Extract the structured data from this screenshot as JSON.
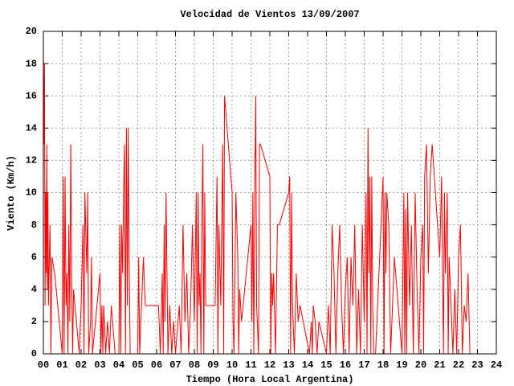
{
  "chart_data": {
    "type": "line",
    "title": "Velocidad de Vientos 13/09/2007",
    "x_label": "Tiempo (Hora Local Argentina)",
    "y_label": "Viento (Km/h)",
    "grid": true,
    "xlim": [
      0,
      24
    ],
    "ylim": [
      0,
      20
    ],
    "xticks": [
      {
        "value": 0,
        "label": "00"
      },
      {
        "value": 1,
        "label": "01"
      },
      {
        "value": 2,
        "label": "02"
      },
      {
        "value": 3,
        "label": "03"
      },
      {
        "value": 4,
        "label": "04"
      },
      {
        "value": 5,
        "label": "05"
      },
      {
        "value": 6,
        "label": "06"
      },
      {
        "value": 7,
        "label": "07"
      },
      {
        "value": 8,
        "label": "08"
      },
      {
        "value": 9,
        "label": "09"
      },
      10,
      11,
      12,
      13,
      14,
      15,
      16,
      17,
      18,
      19,
      20,
      21,
      22,
      23,
      24
    ],
    "yticks": [
      0,
      2,
      4,
      6,
      8,
      10,
      12,
      14,
      16,
      18,
      20
    ],
    "x": [
      0.0,
      0.03,
      0.06,
      0.09,
      0.12,
      0.15,
      0.18,
      0.21,
      0.24,
      0.27,
      0.3,
      0.35,
      0.4,
      0.45,
      0.6,
      1.0,
      1.05,
      1.1,
      1.15,
      1.2,
      1.25,
      1.3,
      1.35,
      1.4,
      1.45,
      1.5,
      1.55,
      1.6,
      1.9,
      2.0,
      2.1,
      2.15,
      2.2,
      2.3,
      2.35,
      2.4,
      2.5,
      2.55,
      2.6,
      3.0,
      3.05,
      3.1,
      3.15,
      3.2,
      3.3,
      3.4,
      3.5,
      3.6,
      3.8,
      4.0,
      4.05,
      4.1,
      4.15,
      4.2,
      4.25,
      4.3,
      4.35,
      4.4,
      4.45,
      4.5,
      4.55,
      4.6,
      5.0,
      5.05,
      5.1,
      5.2,
      5.3,
      5.4,
      5.5,
      6.0,
      6.1,
      6.2,
      6.3,
      6.35,
      6.4,
      6.45,
      6.5,
      6.55,
      6.6,
      6.7,
      6.8,
      6.9,
      7.0,
      7.2,
      7.3,
      7.4,
      7.5,
      7.6,
      7.7,
      7.8,
      7.9,
      8.0,
      8.1,
      8.15,
      8.2,
      8.25,
      8.3,
      8.35,
      8.4,
      8.45,
      8.5,
      8.55,
      8.6,
      9.1,
      9.2,
      9.25,
      9.3,
      9.4,
      9.5,
      9.55,
      9.6,
      10.0,
      10.05,
      10.1,
      10.2,
      10.3,
      10.35,
      10.4,
      10.5,
      11.0,
      11.05,
      11.1,
      11.15,
      11.2,
      11.25,
      11.3,
      11.4,
      11.45,
      11.5,
      12.0,
      12.05,
      12.1,
      12.15,
      12.2,
      12.3,
      12.4,
      12.5,
      13.0,
      13.05,
      13.1,
      13.15,
      13.2,
      13.3,
      13.4,
      13.5,
      13.6,
      14.1,
      14.2,
      14.25,
      14.3,
      14.4,
      14.5,
      14.6,
      15.0,
      15.1,
      15.2,
      15.3,
      15.4,
      15.5,
      15.6,
      15.7,
      15.8,
      15.9,
      16.0,
      16.1,
      16.2,
      16.3,
      16.4,
      16.5,
      16.6,
      16.7,
      16.8,
      16.9,
      17.0,
      17.1,
      17.15,
      17.2,
      17.25,
      17.3,
      17.35,
      17.4,
      17.45,
      17.5,
      17.6,
      18.0,
      18.05,
      18.1,
      18.15,
      18.2,
      18.3,
      18.4,
      18.6,
      19.0,
      19.1,
      19.15,
      19.2,
      19.25,
      19.3,
      19.4,
      19.5,
      19.6,
      19.7,
      19.8,
      19.9,
      20.0,
      20.1,
      20.15,
      20.2,
      20.3,
      20.4,
      20.5,
      20.6,
      21.0,
      21.1,
      21.2,
      21.25,
      21.3,
      21.4,
      21.45,
      21.5,
      21.6,
      21.7,
      21.8,
      21.9,
      22.0,
      22.1,
      22.2,
      22.3,
      22.4,
      22.5,
      22.6
    ],
    "series": [
      {
        "color": "#ff0000",
        "values": [
          19,
          13,
          18,
          3,
          10,
          5,
          13,
          4,
          10,
          3,
          5,
          8,
          0,
          6,
          5,
          0,
          11,
          0,
          11,
          3,
          5,
          0,
          8,
          2,
          13,
          5,
          0,
          4,
          0,
          3,
          8,
          0,
          10,
          5,
          10,
          0,
          2,
          6,
          0,
          5,
          0,
          3,
          0,
          3,
          0,
          2,
          0,
          3,
          0,
          0,
          8,
          0,
          8,
          5,
          10,
          13,
          0,
          14,
          3,
          14,
          5,
          0,
          0,
          6,
          0,
          3,
          6,
          3,
          3,
          3,
          3,
          0,
          5,
          0,
          8,
          2,
          10,
          5,
          0,
          3,
          0,
          2,
          0,
          3,
          0,
          8,
          2,
          5,
          0,
          3,
          8,
          2,
          10,
          0,
          10,
          3,
          5,
          0,
          8,
          13,
          0,
          10,
          3,
          3,
          11,
          0,
          8,
          3,
          13,
          0,
          16,
          10,
          2,
          0,
          10,
          6,
          0,
          4,
          2,
          8,
          2,
          10,
          0,
          10,
          16,
          3,
          0,
          13,
          13,
          11,
          0,
          5,
          3,
          5,
          0,
          8,
          8,
          10,
          11,
          0,
          10,
          3,
          0,
          5,
          2,
          3,
          0,
          2,
          0,
          3,
          2,
          0,
          2,
          0,
          3,
          0,
          8,
          5,
          0,
          5,
          8,
          3,
          0,
          4,
          6,
          0,
          6,
          3,
          8,
          0,
          4,
          0,
          8,
          2,
          10,
          0,
          14,
          5,
          11,
          0,
          11,
          3,
          0,
          0,
          11,
          0,
          10,
          5,
          10,
          8,
          0,
          6,
          0,
          10,
          0,
          9,
          0,
          10,
          3,
          8,
          0,
          10,
          4,
          0,
          6,
          8,
          0,
          11,
          13,
          5,
          11,
          13,
          6,
          11,
          0,
          10,
          5,
          10,
          0,
          6,
          3,
          0,
          4,
          0,
          6,
          8,
          0,
          3,
          2,
          5,
          0
        ]
      }
    ]
  }
}
